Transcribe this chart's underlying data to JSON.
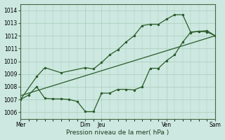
{
  "title": "",
  "xlabel": "Pression niveau de la mer( hPa )",
  "ylabel": "",
  "bg_color": "#cce8e0",
  "grid_color": "#aaccbb",
  "line_color": "#2a5c2a",
  "ylim": [
    1005.5,
    1014.5
  ],
  "yticks": [
    1006,
    1007,
    1008,
    1009,
    1010,
    1011,
    1012,
    1013,
    1014
  ],
  "xlim": [
    0,
    144
  ],
  "xtick_positions": [
    0,
    48,
    60,
    108,
    144
  ],
  "xtick_labels": [
    "Mer",
    "Dim",
    "Jeu",
    "Ven",
    "Sam"
  ],
  "line1_x": [
    0,
    6,
    12,
    18,
    24,
    30,
    36,
    42,
    48,
    54,
    60,
    66,
    72,
    78,
    84,
    90,
    96,
    102,
    108,
    114,
    120,
    126,
    132,
    138,
    144
  ],
  "line1_y": [
    1007.0,
    1007.35,
    1008.0,
    1007.1,
    1007.05,
    1007.05,
    1007.0,
    1006.85,
    1006.05,
    1006.05,
    1007.5,
    1007.5,
    1007.8,
    1007.8,
    1007.75,
    1008.0,
    1009.45,
    1009.45,
    1010.05,
    1010.5,
    1011.5,
    1012.3,
    1012.35,
    1012.3,
    1012.0
  ],
  "line2_x": [
    0,
    12,
    18,
    30,
    48,
    54,
    60,
    66,
    72,
    78,
    84,
    90,
    96,
    102,
    108,
    114,
    120,
    126,
    132,
    138,
    144
  ],
  "line2_y": [
    1007.0,
    1008.8,
    1009.5,
    1009.1,
    1009.5,
    1009.4,
    1009.9,
    1010.5,
    1010.9,
    1011.5,
    1012.0,
    1012.8,
    1012.9,
    1012.9,
    1013.3,
    1013.65,
    1013.65,
    1012.25,
    1012.35,
    1012.4,
    1012.0
  ],
  "line3_x": [
    0,
    144
  ],
  "line3_y": [
    1007.3,
    1012.0
  ]
}
